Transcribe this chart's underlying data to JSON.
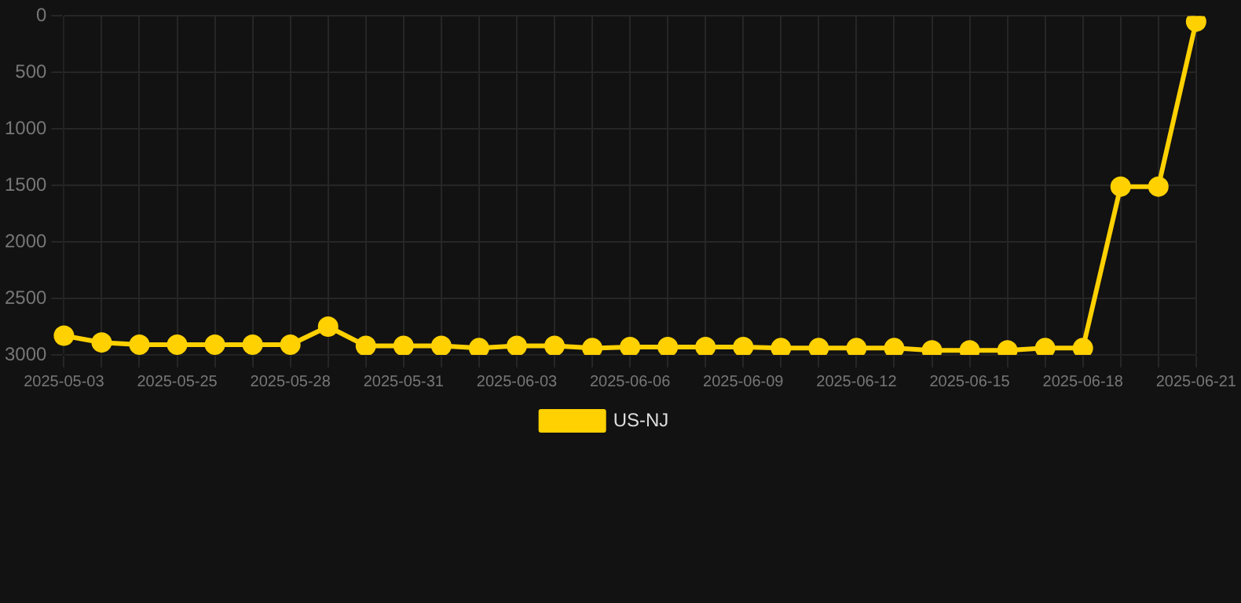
{
  "chart_data": {
    "type": "line",
    "categories": [
      "2025-05-03",
      null,
      null,
      "2025-05-25",
      null,
      null,
      "2025-05-28",
      null,
      null,
      "2025-05-31",
      null,
      null,
      "2025-06-03",
      null,
      null,
      "2025-06-06",
      null,
      null,
      "2025-06-09",
      null,
      null,
      "2025-06-12",
      null,
      null,
      "2025-06-15",
      null,
      null,
      "2025-06-18",
      null,
      null,
      "2025-06-21"
    ],
    "series": [
      {
        "name": "US-NJ",
        "color": "#ffd100",
        "values": [
          2830,
          2890,
          2910,
          2910,
          2910,
          2910,
          2910,
          2750,
          2920,
          2920,
          2920,
          2940,
          2920,
          2920,
          2940,
          2930,
          2930,
          2930,
          2930,
          2940,
          2940,
          2940,
          2940,
          2960,
          2960,
          2960,
          2940,
          2940,
          1510,
          1510,
          50
        ]
      }
    ],
    "ylim": [
      3000,
      0
    ],
    "yticks": [
      0,
      500,
      1000,
      1500,
      2000,
      2500,
      3000
    ],
    "grid": true,
    "legend": "bottom",
    "marker": "circle",
    "line_style": "solid"
  }
}
